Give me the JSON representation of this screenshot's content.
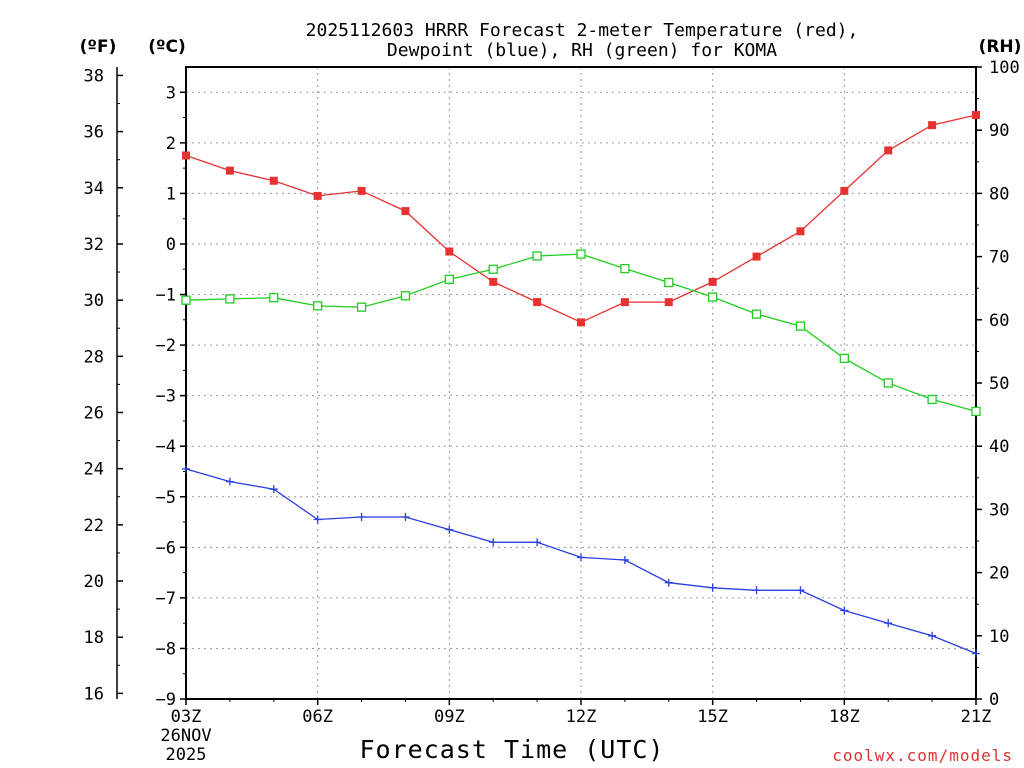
{
  "chart_data": {
    "type": "line",
    "title": "2025112603 HRRR Forecast 2-meter Temperature (red),",
    "subtitle": "Dewpoint (blue), RH (green) for KOMA",
    "xlabel": "Forecast Time (UTC)",
    "credit": "coolwx.com/models",
    "units": {
      "left_f": "(ºF)",
      "left_c": "(ºC)",
      "right": "(RH)"
    },
    "x_ticks": [
      "03Z",
      "06Z",
      "09Z",
      "12Z",
      "15Z",
      "18Z",
      "21Z"
    ],
    "x_date": [
      "26NOV",
      "2025"
    ],
    "f_ticks": [
      "16",
      "18",
      "20",
      "22",
      "24",
      "26",
      "28",
      "30",
      "32",
      "34",
      "36",
      "38"
    ],
    "c_ticks": [
      "3",
      "2",
      "1",
      "0",
      "−1",
      "−2",
      "−3",
      "−4",
      "−5",
      "−6",
      "−7",
      "−8",
      "−9"
    ],
    "rh_ticks": [
      "100",
      "90",
      "80",
      "70",
      "60",
      "50",
      "40",
      "30",
      "20",
      "10",
      "0"
    ],
    "x_hours": [
      3,
      4,
      5,
      6,
      7,
      8,
      9,
      10,
      11,
      12,
      13,
      14,
      15,
      16,
      17,
      18,
      19,
      20,
      21
    ],
    "series": [
      {
        "name": "Temperature",
        "units": "C",
        "color": "#e83232",
        "marker": "filled-square",
        "values": [
          1.75,
          1.45,
          1.25,
          0.95,
          1.05,
          0.65,
          -0.15,
          -0.75,
          -1.15,
          -1.55,
          -1.15,
          -1.15,
          -0.75,
          -0.25,
          0.25,
          1.05,
          1.85,
          2.35,
          2.55
        ]
      },
      {
        "name": "Dewpoint",
        "units": "C",
        "color": "#2a3fe0",
        "marker": "plus",
        "values": [
          -4.45,
          -4.7,
          -4.85,
          -5.45,
          -5.4,
          -5.4,
          -5.65,
          -5.9,
          -5.9,
          -6.2,
          -6.25,
          -6.7,
          -6.8,
          -6.85,
          -6.85,
          -7.25,
          -7.5,
          -7.75,
          -8.1
        ]
      },
      {
        "name": "RH",
        "units": "%",
        "color": "#22cc22",
        "marker": "open-square",
        "values": [
          63.1,
          63.3,
          63.5,
          62.2,
          62.0,
          63.8,
          66.4,
          68.0,
          70.1,
          70.4,
          68.1,
          65.9,
          63.6,
          60.9,
          59.0,
          53.9,
          50.0,
          47.4,
          45.5
        ]
      }
    ],
    "ylim_c": [
      -9,
      3.5
    ],
    "ylim_f": [
      15.8,
      38.3
    ],
    "ylim_rh": [
      0,
      100
    ],
    "grid": true
  }
}
